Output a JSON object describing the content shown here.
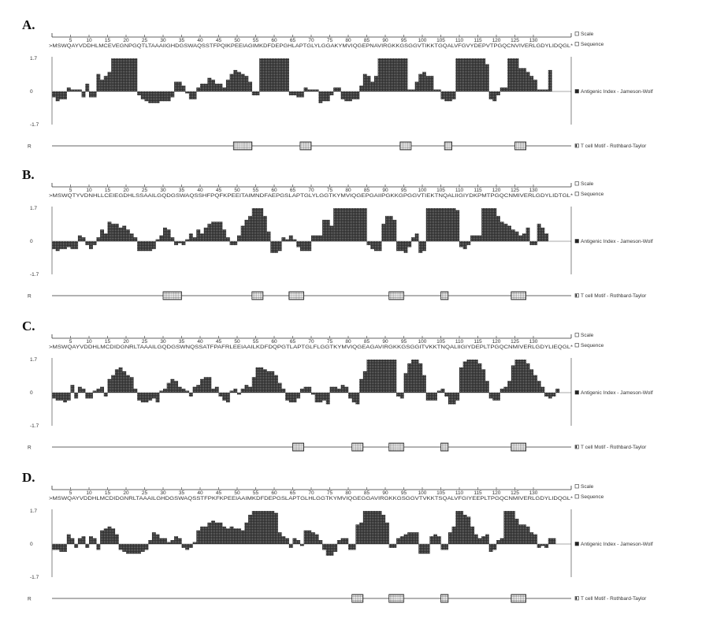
{
  "colors": {
    "bars": "#2b2b2b",
    "line": "#555555",
    "motif_fill": "#ffffff",
    "motif_stroke": "#222222"
  },
  "legend": {
    "scale": "Scale",
    "sequence": "Sequence",
    "antigenic": "Antigenic Index - Jameson-Wolf",
    "tcell": "T cell Motif  - Rothbard-Taylor"
  },
  "chart_data": [
    {
      "type": "bar",
      "panel_label": "A.",
      "sequence": ">MSWQAYVDDHLMCEVEGNPGQTLTAAAIIGHDGSWAQSSTFPQIKPEEIAGIMKDFDEPGHLAPTGLYLGGAKYMVIQGEPNAVIRGKKGSGGVTIKKTGQALVFGVYDEPVTPGQCNVIVERLGDYLIDQGL*",
      "x_ticks": [
        5,
        10,
        15,
        20,
        25,
        30,
        35,
        40,
        45,
        50,
        55,
        60,
        65,
        70,
        75,
        80,
        85,
        90,
        95,
        100,
        105,
        110,
        115,
        120,
        125,
        130
      ],
      "y_ticks": [
        "1.7",
        "0",
        "-1.7"
      ],
      "ylim": [
        -1.7,
        1.7
      ],
      "row_label": "R",
      "antigenic_index": [
        -0.3,
        -0.5,
        -0.4,
        -0.4,
        0.2,
        0.1,
        0.1,
        0.1,
        -0.3,
        0.4,
        -0.3,
        -0.3,
        0.9,
        0.6,
        0.8,
        1.0,
        1.7,
        1.7,
        1.7,
        1.7,
        1.7,
        1.7,
        1.7,
        -0.2,
        -0.4,
        -0.5,
        -0.6,
        -0.6,
        -0.6,
        -0.5,
        -0.5,
        -0.5,
        -0.3,
        0.5,
        0.5,
        0.3,
        -0.1,
        -0.4,
        -0.4,
        0.2,
        0.4,
        0.4,
        0.7,
        0.6,
        0.4,
        0.4,
        0.2,
        0.6,
        0.9,
        1.1,
        1.0,
        0.9,
        0.8,
        0.5,
        -0.2,
        -0.2,
        1.7,
        1.7,
        1.7,
        1.7,
        1.7,
        1.7,
        1.7,
        1.7,
        -0.2,
        -0.2,
        -0.3,
        -0.3,
        0.2,
        0.1,
        0.1,
        0.1,
        -0.6,
        -0.5,
        -0.5,
        -0.2,
        0.2,
        0.2,
        -0.4,
        -0.5,
        -0.5,
        -0.4,
        -0.4,
        0.3,
        0.9,
        0.8,
        0.5,
        0.8,
        1.7,
        1.7,
        1.7,
        1.7,
        1.7,
        1.7,
        1.7,
        1.7,
        0.1,
        0.1,
        0.5,
        0.9,
        1.0,
        0.8,
        0.8,
        0.1,
        0.1,
        -0.4,
        -0.5,
        -0.5,
        -0.4,
        1.7,
        1.7,
        1.7,
        1.7,
        1.7,
        1.7,
        1.7,
        1.7,
        1.4,
        -0.4,
        -0.5,
        -0.2,
        0.2,
        0.2,
        1.7,
        1.7,
        1.7,
        1.2,
        1.2,
        1.0,
        0.8,
        0.6,
        0.1,
        0.1,
        0.1,
        1.1
      ],
      "t_cell_motifs": [
        [
          49,
          54
        ],
        [
          67,
          70
        ],
        [
          94,
          97
        ],
        [
          106,
          108
        ],
        [
          125,
          128
        ]
      ]
    },
    {
      "type": "bar",
      "panel_label": "B.",
      "sequence": ">MSWQTYVDNHLLCEIEGDHLSSAAILGQDGSWAQSSHFPQFKPEEITAIMNDFAEPGSLAPTGLYLGGTKYMVIQGEPGAIIPGKKGPGGVTIEKTNQALIIGIYDKPMTPGQCNMIVERLGDYLIDTGL*",
      "x_ticks": [
        5,
        10,
        15,
        20,
        25,
        30,
        35,
        40,
        45,
        50,
        55,
        60,
        65,
        70,
        75,
        80,
        85,
        90,
        95,
        100,
        105,
        110,
        115,
        120,
        125,
        130
      ],
      "y_ticks": [
        "1.7",
        "0",
        "-1.7"
      ],
      "ylim": [
        -1.7,
        1.7
      ],
      "row_label": "R",
      "antigenic_index": [
        -0.4,
        -0.5,
        -0.4,
        -0.4,
        -0.3,
        -0.4,
        -0.4,
        0.3,
        0.2,
        -0.2,
        -0.4,
        -0.2,
        0.2,
        0.6,
        0.4,
        1.0,
        0.9,
        0.9,
        0.7,
        0.8,
        0.6,
        0.4,
        0.2,
        -0.5,
        -0.5,
        -0.5,
        -0.5,
        -0.4,
        0.1,
        0.3,
        0.7,
        0.6,
        0.2,
        -0.2,
        -0.1,
        -0.2,
        0.1,
        0.4,
        0.2,
        0.6,
        0.4,
        0.7,
        0.9,
        1.0,
        1.0,
        1.0,
        0.6,
        0.2,
        -0.2,
        -0.2,
        0.3,
        0.8,
        1.1,
        1.3,
        1.7,
        1.7,
        1.7,
        1.3,
        0.5,
        -0.6,
        -0.6,
        -0.5,
        0.2,
        0.1,
        0.3,
        0.1,
        -0.3,
        -0.5,
        -0.5,
        -0.5,
        0.3,
        0.3,
        0.3,
        1.1,
        1.1,
        0.8,
        1.7,
        1.7,
        1.7,
        1.7,
        1.7,
        1.7,
        1.7,
        1.7,
        1.7,
        -0.2,
        -0.4,
        -0.5,
        -0.5,
        0.9,
        1.3,
        1.3,
        1.1,
        -0.5,
        -0.5,
        -0.6,
        -0.3,
        0.2,
        0.4,
        -0.6,
        -0.5,
        1.7,
        1.7,
        1.7,
        1.7,
        1.7,
        1.7,
        1.7,
        1.7,
        1.6,
        -0.3,
        -0.4,
        -0.2,
        0.3,
        0.3,
        0.3,
        1.7,
        1.7,
        1.7,
        1.7,
        1.3,
        1.0,
        0.9,
        0.8,
        0.6,
        0.5,
        0.3,
        0.4,
        0.7,
        -0.2,
        -0.2,
        0.9,
        0.7,
        0.4
      ],
      "t_cell_motifs": [
        [
          30,
          35
        ],
        [
          54,
          57
        ],
        [
          64,
          68
        ],
        [
          91,
          95
        ],
        [
          105,
          107
        ],
        [
          124,
          128
        ]
      ]
    },
    {
      "type": "bar",
      "panel_label": "C.",
      "sequence": ">MSWQAYVDDHLMCDIDGNRLTAAAILGQDGSWNQSSATFPAFRLEEIAAILKDFDQPGTLAPTGLFLGGTKYMVIQGEAGAVIRGKKGSGGITVKKTNQALIIGIYDEPLTPGQCNMIVERLGDYLIEQGL*",
      "x_ticks": [
        5,
        10,
        15,
        20,
        25,
        30,
        35,
        40,
        45,
        50,
        55,
        60,
        65,
        70,
        75,
        80,
        85,
        90,
        95,
        100,
        105,
        110,
        115,
        120,
        125,
        130
      ],
      "y_ticks": [
        "1.7",
        "0",
        "-1.7"
      ],
      "ylim": [
        -1.7,
        1.7
      ],
      "row_label": "R",
      "antigenic_index": [
        -0.3,
        -0.4,
        -0.4,
        -0.5,
        -0.4,
        0.4,
        -0.3,
        0.3,
        0.2,
        -0.3,
        -0.3,
        0.1,
        0.2,
        0.3,
        -0.2,
        0.7,
        0.9,
        1.2,
        1.3,
        1.1,
        0.9,
        0.8,
        0.2,
        -0.4,
        -0.5,
        -0.5,
        -0.4,
        -0.3,
        -0.5,
        0.1,
        0.2,
        0.5,
        0.7,
        0.6,
        0.3,
        0.2,
        0.1,
        -0.2,
        0.3,
        0.4,
        0.7,
        0.8,
        0.8,
        0.2,
        0.3,
        -0.2,
        -0.4,
        -0.5,
        0.1,
        0.2,
        -0.1,
        0.2,
        0.4,
        0.3,
        0.8,
        1.3,
        1.3,
        1.2,
        1.1,
        1.1,
        0.9,
        0.5,
        0.2,
        -0.4,
        -0.5,
        -0.5,
        -0.3,
        0.2,
        0.3,
        0.3,
        -0.1,
        -0.5,
        -0.5,
        -0.4,
        -0.6,
        0.3,
        0.3,
        0.2,
        0.4,
        0.3,
        -0.3,
        -0.5,
        -0.6,
        0.7,
        1.1,
        1.7,
        1.7,
        1.7,
        1.7,
        1.7,
        1.7,
        1.7,
        1.7,
        -0.2,
        -0.3,
        1.0,
        1.5,
        1.7,
        1.7,
        1.5,
        0.9,
        -0.4,
        -0.4,
        -0.4,
        0.1,
        0.2,
        -0.2,
        -0.6,
        -0.6,
        -0.4,
        1.3,
        1.6,
        1.7,
        1.7,
        1.7,
        1.5,
        1.2,
        0.6,
        -0.3,
        -0.4,
        -0.4,
        0.2,
        0.3,
        0.6,
        1.4,
        1.7,
        1.7,
        1.7,
        1.5,
        1.2,
        0.9,
        0.6,
        0.3,
        -0.2,
        -0.3,
        -0.2,
        0.2
      ],
      "t_cell_motifs": [
        [
          65,
          68
        ],
        [
          81,
          84
        ],
        [
          91,
          95
        ],
        [
          105,
          107
        ],
        [
          124,
          128
        ]
      ]
    },
    {
      "type": "bar",
      "panel_label": "D.",
      "sequence": ">MSWQAYVDDHLMCDIDGNRLTAAAILGHDGSWAQSSTFPKFKPEEIAAIMKDFDEPGSLAPTGLHLGGTKYMVIQGEGGAVIRGKKGSGGVTVKKTSQALVFGIYEEPLTPGQCNMIVERLGDYLIDQGL*",
      "x_ticks": [
        5,
        10,
        15,
        20,
        25,
        30,
        35,
        40,
        45,
        50,
        55,
        60,
        65,
        70,
        75,
        80,
        85,
        90,
        95,
        100,
        105,
        110,
        115,
        120,
        125,
        130
      ],
      "y_ticks": [
        "1.7",
        "0",
        "-1.7"
      ],
      "ylim": [
        -1.7,
        1.7
      ],
      "row_label": "R",
      "antigenic_index": [
        -0.3,
        -0.3,
        -0.4,
        -0.4,
        0.5,
        0.3,
        -0.2,
        0.3,
        0.4,
        -0.2,
        0.4,
        0.3,
        -0.3,
        0.7,
        0.8,
        0.9,
        0.8,
        0.5,
        -0.3,
        -0.4,
        -0.5,
        -0.5,
        -0.5,
        -0.5,
        -0.4,
        -0.3,
        0.2,
        0.6,
        0.5,
        0.3,
        0.3,
        0.1,
        0.2,
        0.4,
        0.3,
        -0.2,
        -0.3,
        -0.2,
        0.1,
        0.7,
        0.9,
        0.9,
        1.1,
        1.2,
        1.1,
        1.1,
        0.9,
        0.8,
        0.9,
        0.8,
        0.8,
        0.7,
        1.1,
        1.5,
        1.7,
        1.7,
        1.7,
        1.7,
        1.7,
        1.7,
        1.6,
        0.6,
        0.4,
        0.3,
        -0.2,
        0.3,
        0.2,
        -0.1,
        0.7,
        0.7,
        0.6,
        0.5,
        0.2,
        -0.3,
        -0.6,
        -0.6,
        -0.4,
        0.2,
        0.3,
        0.3,
        -0.3,
        -0.3,
        1.0,
        1.1,
        1.7,
        1.7,
        1.7,
        1.7,
        1.7,
        1.5,
        1.1,
        -0.2,
        -0.2,
        0.3,
        0.4,
        0.5,
        0.6,
        0.6,
        0.6,
        -0.5,
        -0.5,
        -0.5,
        0.4,
        0.5,
        0.4,
        -0.3,
        -0.3,
        0.6,
        0.9,
        1.7,
        1.7,
        1.5,
        1.4,
        0.9,
        0.5,
        0.3,
        0.4,
        0.5,
        -0.4,
        -0.3,
        0.2,
        0.3,
        1.7,
        1.7,
        1.7,
        1.3,
        1.0,
        1.0,
        0.9,
        0.6,
        0.5,
        -0.2,
        -0.1,
        -0.2,
        0.3,
        0.3
      ],
      "t_cell_motifs": [
        [
          81,
          84
        ],
        [
          91,
          95
        ],
        [
          105,
          107
        ],
        [
          124,
          128
        ]
      ]
    }
  ]
}
